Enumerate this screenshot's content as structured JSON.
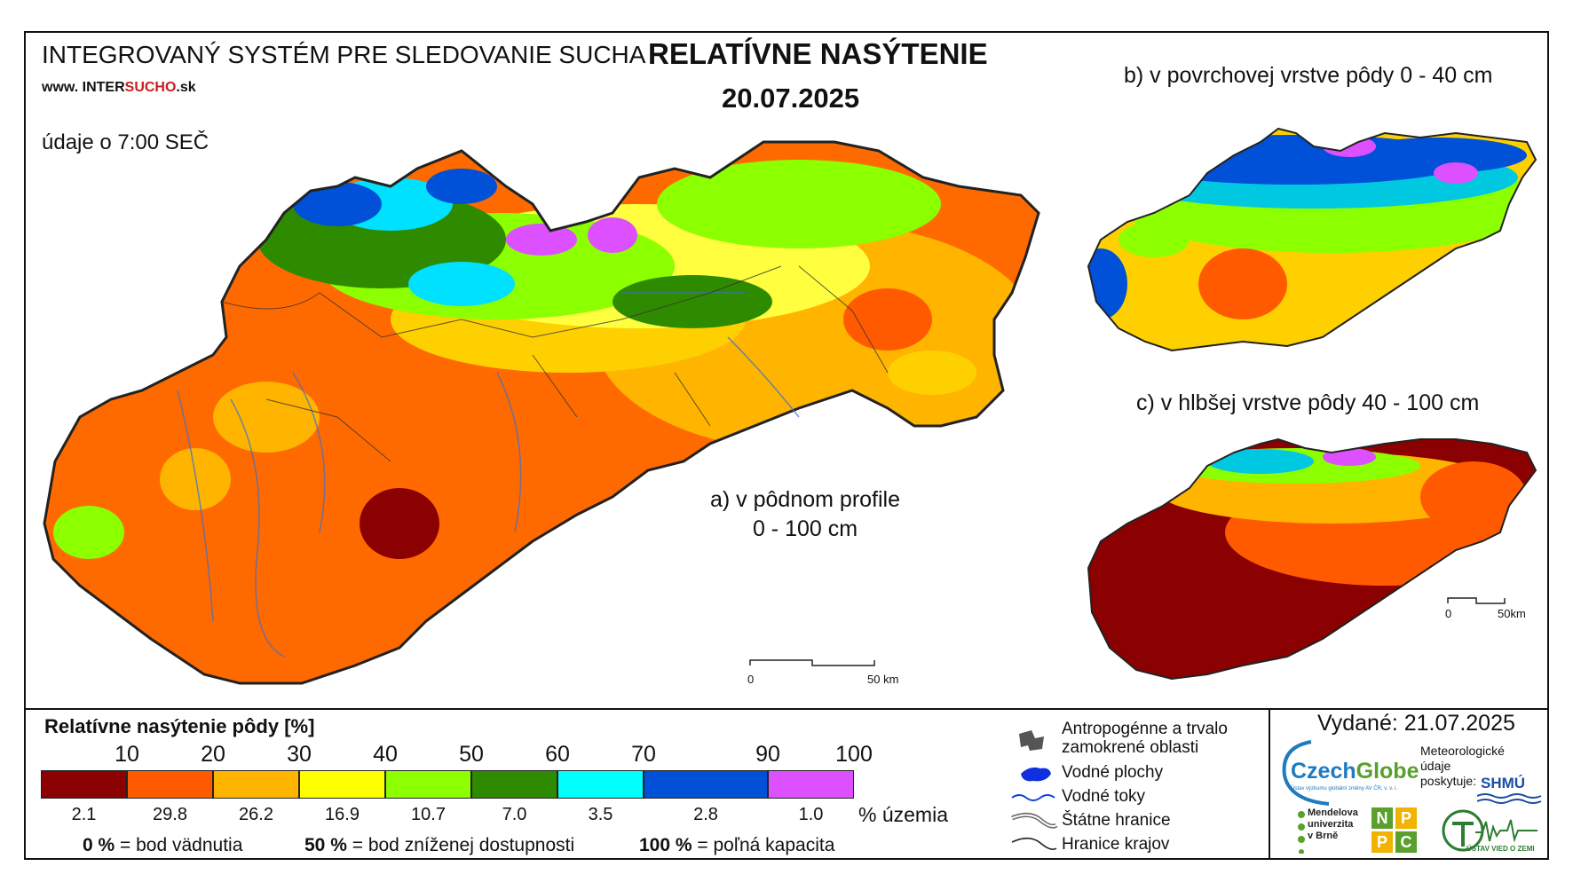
{
  "header": {
    "system_title": "INTEGROVANÝ SYSTÉM PRE SLEDOVANIE SUCHA",
    "url_prefix": "www. INTER",
    "url_highlight": "SUCHO",
    "url_suffix": ".sk",
    "data_time": "údaje o 7:00 SEČ",
    "main_title": "RELATÍVNE NASÝTENIE",
    "date": "20.07.2025"
  },
  "maps": {
    "a_label_line1": "a) v pôdnom profile",
    "a_label_line2": "0 - 100 cm",
    "b_label": "b) v povrchovej vrstve pôdy 0 - 40 cm",
    "c_label": "c) v hlbšej vrstve pôdy 40 - 100 cm",
    "scale_main_zero": "0",
    "scale_main_end": "50 km",
    "scale_small_zero": "0",
    "scale_small_end": "50km"
  },
  "legend": {
    "title": "Relatívne nasýtenie pôdy [%]",
    "thresholds": [
      "10",
      "20",
      "30",
      "40",
      "50",
      "60",
      "70",
      "90",
      "100"
    ],
    "classes": [
      {
        "color": "#8b0000",
        "area_pct": "2.1"
      },
      {
        "color": "#ff5a00",
        "area_pct": "29.8"
      },
      {
        "color": "#ffb400",
        "area_pct": "26.2"
      },
      {
        "color": "#ffff00",
        "area_pct": "16.9"
      },
      {
        "color": "#8cff00",
        "area_pct": "10.7"
      },
      {
        "color": "#2e8b00",
        "area_pct": "7.0"
      },
      {
        "color": "#00ffff",
        "area_pct": "3.5"
      },
      {
        "color": "#0050d8",
        "area_pct": "2.8"
      },
      {
        "color": "#dc50ff",
        "area_pct": "1.0"
      }
    ],
    "area_unit": "% územia",
    "def_0_value": "0 %",
    "def_0_text": "= bod vädnutia",
    "def_50_value": "50 %",
    "def_50_text": "= bod zníženej dostupnosti",
    "def_100_value": "100 %",
    "def_100_text": "= poľná kapacita"
  },
  "symbols": {
    "anthropogenic_line1": "Antropogénne a trvalo",
    "anthropogenic_line2": "zamokrené oblasti",
    "water_bodies": "Vodné plochy",
    "water_streams": "Vodné toky",
    "state_border": "Štátne hranice",
    "region_border": "Hranice krajov"
  },
  "footer": {
    "issued": "Vydané: 21.07.2025",
    "czechglobe_a": "Czech",
    "czechglobe_b": "Globe",
    "czechglobe_sub": "Ústav výzkumu globální změny AV ČR, v. v. i.",
    "meteo_line1": "Meteorologické",
    "meteo_line2": "údaje",
    "meteo_line3": "poskytuje:",
    "shmu": "SHMÚ",
    "mendel_line1": "Mendelova",
    "mendel_line2": "univerzita",
    "mendel_line3": "v Brně",
    "nppc": [
      "N",
      "P",
      "P",
      "C"
    ],
    "uvz": "ÚSTAV VIED O ZEMI"
  }
}
